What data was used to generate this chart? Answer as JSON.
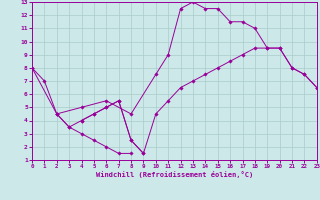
{
  "xlabel": "Windchill (Refroidissement éolien,°C)",
  "xlim": [
    0,
    23
  ],
  "ylim": [
    1,
    13
  ],
  "xticks": [
    0,
    1,
    2,
    3,
    4,
    5,
    6,
    7,
    8,
    9,
    10,
    11,
    12,
    13,
    14,
    15,
    16,
    17,
    18,
    19,
    20,
    21,
    22,
    23
  ],
  "yticks": [
    1,
    2,
    3,
    4,
    5,
    6,
    7,
    8,
    9,
    10,
    11,
    12,
    13
  ],
  "bg_color": "#cce8e8",
  "line_color": "#990099",
  "grid_color": "#aacccc",
  "line_a_x": [
    0,
    1,
    2,
    3,
    4,
    5,
    6,
    7,
    8
  ],
  "line_a_y": [
    8.0,
    7.0,
    4.5,
    3.5,
    3.0,
    2.5,
    2.0,
    1.5,
    1.5
  ],
  "line_b_x": [
    0,
    2,
    4,
    6,
    8,
    10,
    11,
    12,
    13,
    14,
    15,
    16,
    17,
    18,
    19,
    20,
    21,
    22,
    23
  ],
  "line_b_y": [
    8.0,
    4.5,
    5.0,
    5.5,
    4.5,
    7.5,
    9.0,
    12.5,
    13.0,
    12.5,
    12.5,
    11.5,
    11.5,
    11.0,
    9.5,
    9.5,
    8.0,
    7.5,
    6.5
  ],
  "line_c_x": [
    4,
    5,
    6,
    7,
    8,
    9
  ],
  "line_c_y": [
    4.0,
    4.5,
    5.0,
    5.5,
    2.5,
    1.5
  ],
  "line_d_x": [
    2,
    3,
    4,
    5,
    6,
    7,
    8,
    9,
    10,
    11,
    12,
    13,
    14,
    15,
    16,
    17,
    18,
    19,
    20,
    21,
    22,
    23
  ],
  "line_d_y": [
    4.5,
    3.5,
    4.0,
    4.5,
    5.0,
    5.5,
    2.5,
    1.5,
    4.5,
    5.5,
    6.5,
    7.0,
    7.5,
    8.0,
    8.5,
    9.0,
    9.5,
    9.5,
    9.5,
    8.0,
    7.5,
    6.5
  ]
}
